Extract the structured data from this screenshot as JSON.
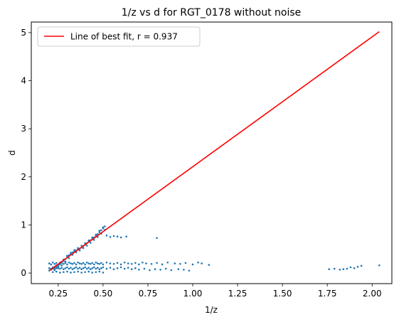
{
  "chart_data": {
    "type": "scatter",
    "title": "1/z vs d for RGT_0178 without noise",
    "xlabel": "1/z",
    "ylabel": "d",
    "xlim": [
      0.1,
      2.11
    ],
    "ylim": [
      -0.22,
      5.22
    ],
    "xticks": [
      0.25,
      0.5,
      0.75,
      1.0,
      1.25,
      1.5,
      1.75,
      2.0
    ],
    "xtick_labels": [
      "0.25",
      "0.50",
      "0.75",
      "1.00",
      "1.25",
      "1.50",
      "1.75",
      "2.00"
    ],
    "yticks": [
      0,
      1,
      2,
      3,
      4,
      5
    ],
    "ytick_labels": [
      "0",
      "1",
      "2",
      "3",
      "4",
      "5"
    ],
    "grid": false,
    "legend_position": "top-left",
    "legend": [
      {
        "label": "Line of best fit, r = 0.937",
        "color": "#ff0000"
      }
    ],
    "series": [
      {
        "kind": "scatter",
        "color": "#1f77b4",
        "points": [
          [
            0.2,
            0.05
          ],
          [
            0.21,
            0.07
          ],
          [
            0.22,
            0.09
          ],
          [
            0.23,
            0.11
          ],
          [
            0.24,
            0.13
          ],
          [
            0.25,
            0.15
          ],
          [
            0.26,
            0.18
          ],
          [
            0.27,
            0.21
          ],
          [
            0.28,
            0.25
          ],
          [
            0.29,
            0.29
          ],
          [
            0.3,
            0.33
          ],
          [
            0.31,
            0.37
          ],
          [
            0.32,
            0.4
          ],
          [
            0.33,
            0.43
          ],
          [
            0.34,
            0.45
          ],
          [
            0.35,
            0.47
          ],
          [
            0.36,
            0.49
          ],
          [
            0.37,
            0.51
          ],
          [
            0.38,
            0.53
          ],
          [
            0.39,
            0.56
          ],
          [
            0.4,
            0.59
          ],
          [
            0.41,
            0.62
          ],
          [
            0.42,
            0.65
          ],
          [
            0.43,
            0.68
          ],
          [
            0.44,
            0.71
          ],
          [
            0.45,
            0.74
          ],
          [
            0.46,
            0.77
          ],
          [
            0.47,
            0.81
          ],
          [
            0.48,
            0.85
          ],
          [
            0.49,
            0.89
          ],
          [
            0.5,
            0.93
          ],
          [
            0.51,
            0.97
          ],
          [
            0.22,
            0.12
          ],
          [
            0.24,
            0.16
          ],
          [
            0.26,
            0.22
          ],
          [
            0.28,
            0.28
          ],
          [
            0.3,
            0.36
          ],
          [
            0.32,
            0.42
          ],
          [
            0.34,
            0.48
          ],
          [
            0.36,
            0.52
          ],
          [
            0.38,
            0.57
          ],
          [
            0.4,
            0.62
          ],
          [
            0.42,
            0.68
          ],
          [
            0.44,
            0.74
          ],
          [
            0.46,
            0.8
          ],
          [
            0.48,
            0.88
          ],
          [
            0.5,
            0.95
          ],
          [
            0.23,
            0.06
          ],
          [
            0.25,
            0.1
          ],
          [
            0.27,
            0.16
          ],
          [
            0.29,
            0.24
          ],
          [
            0.31,
            0.31
          ],
          [
            0.33,
            0.38
          ],
          [
            0.35,
            0.43
          ],
          [
            0.37,
            0.47
          ],
          [
            0.39,
            0.52
          ],
          [
            0.41,
            0.57
          ],
          [
            0.43,
            0.63
          ],
          [
            0.45,
            0.69
          ],
          [
            0.47,
            0.75
          ],
          [
            0.49,
            0.82
          ],
          [
            0.51,
            0.9
          ],
          [
            0.2,
            0.2
          ],
          [
            0.21,
            0.18
          ],
          [
            0.22,
            0.22
          ],
          [
            0.23,
            0.19
          ],
          [
            0.24,
            0.21
          ],
          [
            0.25,
            0.17
          ],
          [
            0.26,
            0.2
          ],
          [
            0.27,
            0.22
          ],
          [
            0.28,
            0.19
          ],
          [
            0.29,
            0.21
          ],
          [
            0.3,
            0.18
          ],
          [
            0.31,
            0.22
          ],
          [
            0.32,
            0.2
          ],
          [
            0.33,
            0.19
          ],
          [
            0.34,
            0.21
          ],
          [
            0.35,
            0.18
          ],
          [
            0.36,
            0.22
          ],
          [
            0.37,
            0.2
          ],
          [
            0.38,
            0.19
          ],
          [
            0.39,
            0.21
          ],
          [
            0.4,
            0.18
          ],
          [
            0.41,
            0.22
          ],
          [
            0.42,
            0.2
          ],
          [
            0.43,
            0.19
          ],
          [
            0.44,
            0.21
          ],
          [
            0.45,
            0.18
          ],
          [
            0.46,
            0.22
          ],
          [
            0.47,
            0.2
          ],
          [
            0.48,
            0.19
          ],
          [
            0.49,
            0.21
          ],
          [
            0.5,
            0.18
          ],
          [
            0.52,
            0.22
          ],
          [
            0.54,
            0.2
          ],
          [
            0.56,
            0.19
          ],
          [
            0.58,
            0.21
          ],
          [
            0.6,
            0.18
          ],
          [
            0.62,
            0.22
          ],
          [
            0.64,
            0.2
          ],
          [
            0.66,
            0.19
          ],
          [
            0.68,
            0.21
          ],
          [
            0.7,
            0.18
          ],
          [
            0.72,
            0.22
          ],
          [
            0.74,
            0.2
          ],
          [
            0.77,
            0.19
          ],
          [
            0.8,
            0.21
          ],
          [
            0.83,
            0.18
          ],
          [
            0.86,
            0.22
          ],
          [
            0.9,
            0.2
          ],
          [
            0.93,
            0.19
          ],
          [
            0.96,
            0.21
          ],
          [
            1.0,
            0.18
          ],
          [
            1.03,
            0.22
          ],
          [
            1.05,
            0.2
          ],
          [
            1.09,
            0.17
          ],
          [
            0.2,
            0.1
          ],
          [
            0.21,
            0.09
          ],
          [
            0.22,
            0.11
          ],
          [
            0.23,
            0.08
          ],
          [
            0.24,
            0.1
          ],
          [
            0.25,
            0.12
          ],
          [
            0.26,
            0.09
          ],
          [
            0.27,
            0.11
          ],
          [
            0.28,
            0.08
          ],
          [
            0.29,
            0.1
          ],
          [
            0.3,
            0.12
          ],
          [
            0.31,
            0.09
          ],
          [
            0.32,
            0.11
          ],
          [
            0.33,
            0.08
          ],
          [
            0.34,
            0.1
          ],
          [
            0.35,
            0.12
          ],
          [
            0.36,
            0.09
          ],
          [
            0.37,
            0.11
          ],
          [
            0.38,
            0.08
          ],
          [
            0.39,
            0.1
          ],
          [
            0.4,
            0.12
          ],
          [
            0.41,
            0.09
          ],
          [
            0.42,
            0.11
          ],
          [
            0.43,
            0.08
          ],
          [
            0.44,
            0.1
          ],
          [
            0.45,
            0.12
          ],
          [
            0.46,
            0.09
          ],
          [
            0.47,
            0.11
          ],
          [
            0.48,
            0.08
          ],
          [
            0.49,
            0.1
          ],
          [
            0.5,
            0.12
          ],
          [
            0.52,
            0.09
          ],
          [
            0.54,
            0.11
          ],
          [
            0.56,
            0.08
          ],
          [
            0.58,
            0.1
          ],
          [
            0.6,
            0.12
          ],
          [
            0.62,
            0.09
          ],
          [
            0.64,
            0.11
          ],
          [
            0.66,
            0.08
          ],
          [
            0.68,
            0.1
          ],
          [
            0.7,
            0.07
          ],
          [
            0.73,
            0.09
          ],
          [
            0.76,
            0.06
          ],
          [
            0.79,
            0.08
          ],
          [
            0.82,
            0.07
          ],
          [
            0.85,
            0.09
          ],
          [
            0.88,
            0.06
          ],
          [
            0.92,
            0.08
          ],
          [
            0.95,
            0.07
          ],
          [
            0.98,
            0.05
          ],
          [
            0.22,
            0.02
          ],
          [
            0.24,
            0.03
          ],
          [
            0.26,
            0.01
          ],
          [
            0.28,
            0.02
          ],
          [
            0.3,
            0.03
          ],
          [
            0.32,
            0.01
          ],
          [
            0.34,
            0.02
          ],
          [
            0.36,
            0.03
          ],
          [
            0.38,
            0.01
          ],
          [
            0.4,
            0.02
          ],
          [
            0.42,
            0.03
          ],
          [
            0.44,
            0.01
          ],
          [
            0.46,
            0.02
          ],
          [
            0.48,
            0.03
          ],
          [
            0.5,
            0.01
          ],
          [
            0.52,
            0.78
          ],
          [
            0.54,
            0.75
          ],
          [
            0.56,
            0.77
          ],
          [
            0.58,
            0.76
          ],
          [
            0.6,
            0.74
          ],
          [
            0.63,
            0.76
          ],
          [
            0.8,
            0.73
          ],
          [
            1.76,
            0.08
          ],
          [
            1.79,
            0.09
          ],
          [
            1.82,
            0.07
          ],
          [
            1.84,
            0.08
          ],
          [
            1.86,
            0.09
          ],
          [
            1.88,
            0.12
          ],
          [
            1.9,
            0.1
          ],
          [
            1.92,
            0.13
          ],
          [
            1.94,
            0.15
          ],
          [
            2.04,
            0.16
          ]
        ]
      },
      {
        "kind": "line",
        "name": "Line of best fit, r = 0.937",
        "color": "#ff0000",
        "x": [
          0.2,
          2.04
        ],
        "y": [
          0.05,
          5.02
        ]
      }
    ]
  }
}
